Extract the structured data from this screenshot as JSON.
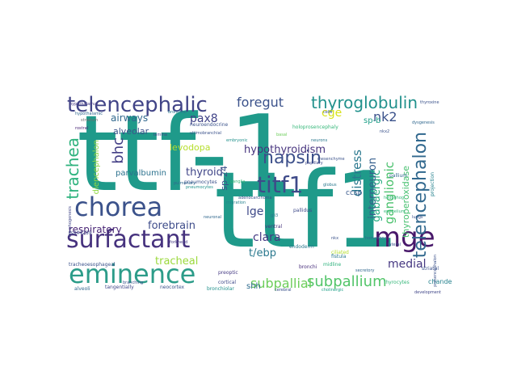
{
  "words": [
    {
      "text": "ttf-1",
      "color": "#1f9a8a"
    },
    {
      "text": "ttf1",
      "color": "#1f9a8a"
    },
    {
      "text": "surfactant",
      "color": "#46327e"
    },
    {
      "text": "chorea",
      "color": "#3b528b"
    },
    {
      "text": "eminence",
      "color": "#2c9c89"
    },
    {
      "text": "telencephalic",
      "color": "#414487"
    },
    {
      "text": "thyroglobulin",
      "color": "#21918c"
    },
    {
      "text": "mge",
      "color": "#48186a"
    },
    {
      "text": "titf1",
      "color": "#3e4a89"
    },
    {
      "text": "napsin",
      "color": "#3c4f8a"
    },
    {
      "text": "telencephalon",
      "color": "#31688e"
    },
    {
      "text": "trachea",
      "color": "#2db27d"
    },
    {
      "text": "foregut",
      "color": "#3b528b"
    },
    {
      "text": "subpallium",
      "color": "#52c569"
    },
    {
      "text": "subpallial",
      "color": "#6ccd5a"
    },
    {
      "text": "hypothyroidism",
      "color": "#46337e"
    },
    {
      "text": "bhc",
      "color": "#433e85"
    },
    {
      "text": "thyroid",
      "color": "#404688"
    },
    {
      "text": "tracheal",
      "color": "#9bd93c"
    },
    {
      "text": "nk2",
      "color": "#3b528b"
    },
    {
      "text": "pax8",
      "color": "#404387"
    },
    {
      "text": "ganglionic",
      "color": "#4ac16d"
    },
    {
      "text": "gabaergic",
      "color": "#26ad81"
    },
    {
      "text": "distress",
      "color": "#2a788e"
    },
    {
      "text": "interneuron",
      "color": "#355f8d"
    },
    {
      "text": "forebrain",
      "color": "#3e4c8a"
    },
    {
      "text": "respiratory",
      "color": "#482475"
    },
    {
      "text": "airways",
      "color": "#31688e"
    },
    {
      "text": "alveolar",
      "color": "#3b528b"
    },
    {
      "text": "diencephalon",
      "color": "#8fd744"
    },
    {
      "text": "levodopa",
      "color": "#b5de2b"
    },
    {
      "text": "parvalbumin",
      "color": "#2c728e"
    },
    {
      "text": "clara",
      "color": "#443983"
    },
    {
      "text": "lge",
      "color": "#3e4989"
    },
    {
      "text": "t/ebp",
      "color": "#2a788e"
    },
    {
      "text": "medial",
      "color": "#453781"
    },
    {
      "text": "cge",
      "color": "#d8e219"
    },
    {
      "text": "sp-b",
      "color": "#1fa088"
    },
    {
      "text": "sp-24",
      "color": "#3b528b"
    },
    {
      "text": "shh",
      "color": "#2f6c8e"
    },
    {
      "text": "thyroperoxidase",
      "color": "#46c06f"
    },
    {
      "text": "chandelier",
      "color": "#26828e"
    },
    {
      "text": "ccsp",
      "color": "#38588c"
    },
    {
      "text": "pneumocytes",
      "color": "#3b528b"
    },
    {
      "text": "striatum",
      "color": "#6c6c6c"
    },
    {
      "text": "hypothalamic",
      "color": "#31688e"
    },
    {
      "text": "neuroendocrine",
      "color": "#3b528b"
    },
    {
      "text": "holoprosencephaly",
      "color": "#35b779"
    },
    {
      "text": "pallidus",
      "color": "#3e4989"
    },
    {
      "text": "bronchiolar",
      "color": "#21918c"
    },
    {
      "text": "ventral",
      "color": "#46337e"
    },
    {
      "text": "endoderm",
      "color": "#2a788e"
    },
    {
      "text": "tracheoesophageal",
      "color": "#3b528b"
    },
    {
      "text": "bronchi",
      "color": "#472d7b"
    },
    {
      "text": "alveoli",
      "color": "#31688e"
    },
    {
      "text": "tangentially",
      "color": "#404688"
    },
    {
      "text": "neocortex",
      "color": "#3b528b"
    },
    {
      "text": "cortical",
      "color": "#3e4989"
    },
    {
      "text": "preoptic",
      "color": "#443983"
    },
    {
      "text": "pallium",
      "color": "#31688e"
    },
    {
      "text": "fistula",
      "color": "#2a788e"
    },
    {
      "text": "thyrocytes",
      "color": "#35b779"
    },
    {
      "text": "projection",
      "color": "#26828e"
    },
    {
      "text": "striatal",
      "color": "#3b528b"
    },
    {
      "text": "midline",
      "color": "#2db27d"
    },
    {
      "text": "ciliated",
      "color": "#b5de2b"
    },
    {
      "text": "rostral",
      "color": "#482475"
    },
    {
      "text": "rs944289",
      "color": "#3e4989"
    },
    {
      "text": "pulmonary",
      "color": "#31688e"
    },
    {
      "text": "hypothalamus",
      "color": "#443983"
    },
    {
      "text": "nkx2",
      "color": "#3b528b"
    },
    {
      "text": "pneumocytes",
      "color": "#21918c"
    },
    {
      "text": "ultimobranchial",
      "color": "#3b528b"
    },
    {
      "text": "basal",
      "color": "#6ccd5a"
    },
    {
      "text": "bronchial",
      "color": "#2a788e"
    },
    {
      "text": "hedgehog",
      "color": "#35b779"
    },
    {
      "text": "lungs",
      "color": "#3b528b"
    },
    {
      "text": "dysgenesis",
      "color": "#31688e"
    },
    {
      "text": "lamina",
      "color": "#404688"
    },
    {
      "text": "cerebral",
      "color": "#3b528b"
    },
    {
      "text": "neurons",
      "color": "#2a788e"
    },
    {
      "text": "cholinergic",
      "color": "#1fa088"
    },
    {
      "text": "prosencephalon",
      "color": "#3b528b"
    },
    {
      "text": "morphogenesis",
      "color": "#404688"
    },
    {
      "text": "branching",
      "color": "#3b528b"
    },
    {
      "text": "embryonic",
      "color": "#21918c"
    },
    {
      "text": "secretory",
      "color": "#31688e"
    },
    {
      "text": "mesenchyme",
      "color": "#3b528b"
    },
    {
      "text": "epithelium",
      "color": "#35b779"
    },
    {
      "text": "forkhead",
      "color": "#443983"
    },
    {
      "text": "migration",
      "color": "#26828e"
    },
    {
      "text": "thyroxine",
      "color": "#3b528b"
    },
    {
      "text": "gli3",
      "color": "#2a788e"
    },
    {
      "text": "papillary",
      "color": "#3e4989"
    },
    {
      "text": "homeobox",
      "color": "#31688e"
    },
    {
      "text": "lateral",
      "color": "#3b528b"
    },
    {
      "text": "development",
      "color": "#404688"
    },
    {
      "text": "adenocarcinoma",
      "color": "#3b528b"
    },
    {
      "text": "ganglia",
      "color": "#35b779"
    },
    {
      "text": "globus",
      "color": "#2a788e"
    },
    {
      "text": "nkx",
      "color": "#3b528b"
    },
    {
      "text": "neuronal",
      "color": "#31688e"
    },
    {
      "text": "cells",
      "color": "#3b528b"
    },
    {
      "text": "expression",
      "color": "#21918c"
    }
  ]
}
